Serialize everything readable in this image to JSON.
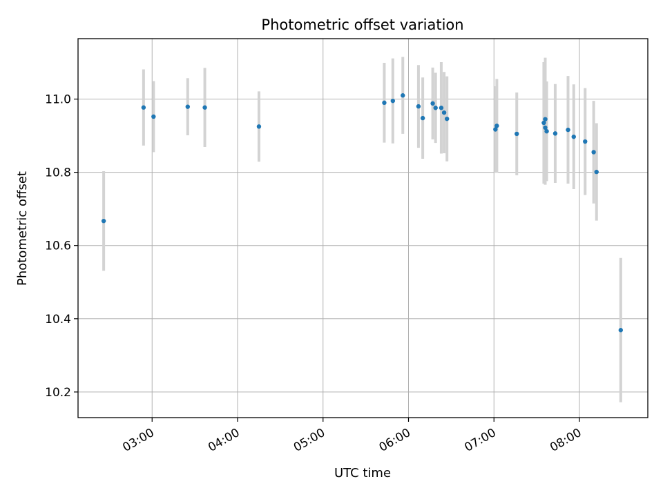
{
  "chart_data": {
    "type": "scatter",
    "title": "Photometric offset variation",
    "xlabel": "UTC time",
    "ylabel": "Photometric offset",
    "x_axis": {
      "kind": "time",
      "range": [
        "02:08",
        "08:48"
      ],
      "ticks": [
        "03:00",
        "04:00",
        "05:00",
        "06:00",
        "07:00",
        "08:00"
      ]
    },
    "y_axis": {
      "range": [
        10.13,
        11.165
      ],
      "ticks": [
        10.2,
        10.4,
        10.6,
        10.8,
        11.0
      ],
      "tick_labels": [
        "10.2",
        "10.4",
        "10.6",
        "10.8",
        "11.0"
      ]
    },
    "grid": true,
    "colors": {
      "point": "#1f77b4",
      "errorbar": "#d3d3d3",
      "grid": "#b0b0b0"
    },
    "series": [
      {
        "points": [
          {
            "x": "02:26",
            "y": 10.667,
            "err": 0.136
          },
          {
            "x": "02:54",
            "y": 10.977,
            "err": 0.104
          },
          {
            "x": "03:01",
            "y": 10.952,
            "err": 0.097
          },
          {
            "x": "03:25",
            "y": 10.979,
            "err": 0.078
          },
          {
            "x": "03:37",
            "y": 10.977,
            "err": 0.108
          },
          {
            "x": "04:15",
            "y": 10.925,
            "err": 0.096
          },
          {
            "x": "05:43",
            "y": 10.99,
            "err": 0.109
          },
          {
            "x": "05:49",
            "y": 10.995,
            "err": 0.116
          },
          {
            "x": "05:56",
            "y": 11.01,
            "err": 0.105
          },
          {
            "x": "06:07",
            "y": 10.98,
            "err": 0.113
          },
          {
            "x": "06:10",
            "y": 10.948,
            "err": 0.111
          },
          {
            "x": "06:17",
            "y": 10.988,
            "err": 0.098
          },
          {
            "x": "06:19",
            "y": 10.976,
            "err": 0.096
          },
          {
            "x": "06:23",
            "y": 10.976,
            "err": 0.125
          },
          {
            "x": "06:25",
            "y": 10.963,
            "err": 0.111
          },
          {
            "x": "06:27",
            "y": 10.946,
            "err": 0.116
          },
          {
            "x": "07:01",
            "y": 10.917,
            "err": 0.118
          },
          {
            "x": "07:02",
            "y": 10.927,
            "err": 0.128
          },
          {
            "x": "07:16",
            "y": 10.905,
            "err": 0.113
          },
          {
            "x": "07:35",
            "y": 10.935,
            "err": 0.166
          },
          {
            "x": "07:36",
            "y": 10.922,
            "err": 0.156
          },
          {
            "x": "07:36",
            "y": 10.945,
            "err": 0.168
          },
          {
            "x": "07:37",
            "y": 10.912,
            "err": 0.136
          },
          {
            "x": "07:43",
            "y": 10.906,
            "err": 0.135
          },
          {
            "x": "07:52",
            "y": 10.916,
            "err": 0.147
          },
          {
            "x": "07:56",
            "y": 10.897,
            "err": 0.143
          },
          {
            "x": "08:04",
            "y": 10.884,
            "err": 0.146
          },
          {
            "x": "08:10",
            "y": 10.855,
            "err": 0.14
          },
          {
            "x": "08:12",
            "y": 10.801,
            "err": 0.133
          },
          {
            "x": "08:29",
            "y": 10.369,
            "err": 0.197
          }
        ]
      }
    ]
  }
}
